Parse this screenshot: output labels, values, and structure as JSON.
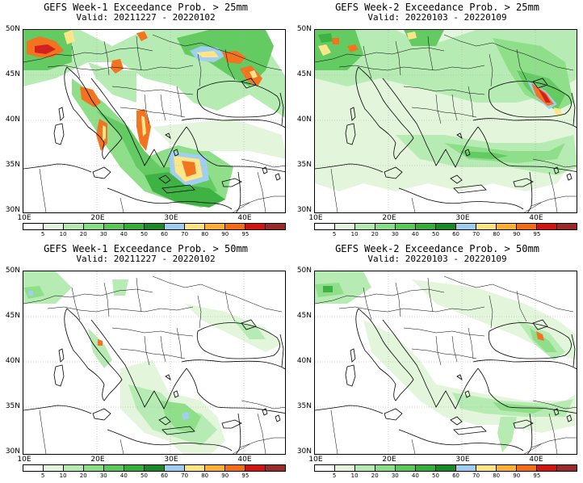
{
  "lat_labels": [
    "50N",
    "45N",
    "40N",
    "35N",
    "30N"
  ],
  "lon_labels": [
    "10E",
    "20E",
    "30E",
    "40E"
  ],
  "colorbar": {
    "levels": [
      "5",
      "10",
      "20",
      "30",
      "40",
      "50",
      "60",
      "70",
      "80",
      "90",
      "95"
    ],
    "colors": [
      "#ffffff",
      "#e2f5da",
      "#b4eab0",
      "#8ade84",
      "#5cc85a",
      "#35ae3a",
      "#1a8a26",
      "#9dcdf0",
      "#fde483",
      "#fcb033",
      "#f26d16",
      "#d21414",
      "#9a2a2a"
    ]
  },
  "panels": [
    {
      "title": "GEFS Week-1 Exceedance Prob. > 25mm",
      "valid": "Valid: 20211227 - 20220102"
    },
    {
      "title": "GEFS Week-2 Exceedance Prob. > 25mm",
      "valid": "Valid: 20220103 - 20220109"
    },
    {
      "title": "GEFS Week-1 Exceedance Prob. > 50mm",
      "valid": "Valid: 20211227 - 20220102"
    },
    {
      "title": "GEFS Week-2 Exceedance Prob. > 50mm",
      "valid": "Valid: 20220103 - 20220109"
    }
  ]
}
